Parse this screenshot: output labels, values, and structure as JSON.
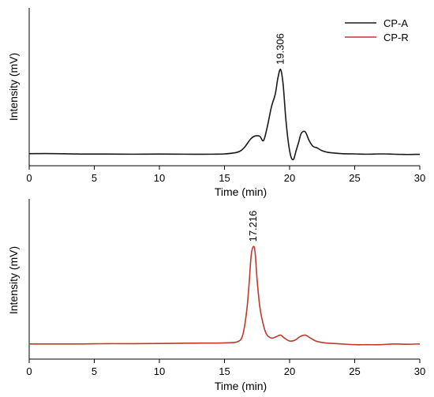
{
  "chart_data": [
    {
      "type": "line",
      "xlabel": "Time (min)",
      "ylabel": "Intensity (mV)",
      "xlim": [
        0,
        30
      ],
      "ylim": [
        0,
        1
      ],
      "xticks": [
        0,
        5,
        10,
        15,
        20,
        25,
        30
      ],
      "yticks_shown": false,
      "grid": false,
      "legend_position": "top-right",
      "legend": [
        {
          "name": "CP-A",
          "color": "#1a1a1a"
        },
        {
          "name": "CP-R",
          "color": "#c0392b"
        }
      ],
      "series": [
        {
          "name": "CP-A",
          "color": "#1a1a1a",
          "x": [
            0,
            2,
            4,
            6,
            8,
            10,
            12,
            14,
            15,
            16,
            16.5,
            17,
            17.3,
            17.7,
            18.0,
            18.3,
            18.6,
            18.9,
            19.1,
            19.306,
            19.5,
            19.7,
            19.9,
            20.1,
            20.3,
            20.5,
            20.7,
            20.9,
            21.2,
            21.5,
            21.8,
            22.1,
            22.5,
            23,
            24,
            25,
            26,
            27,
            28,
            29,
            30
          ],
          "y": [
            0.04,
            0.04,
            0.037,
            0.037,
            0.036,
            0.037,
            0.036,
            0.036,
            0.038,
            0.05,
            0.08,
            0.14,
            0.16,
            0.16,
            0.13,
            0.23,
            0.36,
            0.45,
            0.56,
            0.62,
            0.52,
            0.29,
            0.12,
            0.02,
            0.0,
            0.06,
            0.12,
            0.18,
            0.19,
            0.13,
            0.09,
            0.08,
            0.06,
            0.048,
            0.04,
            0.038,
            0.036,
            0.038,
            0.036,
            0.034,
            0.035
          ],
          "peak_label": {
            "x": 19.306,
            "y": 0.62,
            "text": "19.306"
          }
        }
      ]
    },
    {
      "type": "line",
      "xlabel": "Time (min)",
      "ylabel": "Intensity (mV)",
      "xlim": [
        0,
        30
      ],
      "ylim": [
        0,
        1
      ],
      "xticks": [
        0,
        5,
        10,
        15,
        20,
        25,
        30
      ],
      "yticks_shown": false,
      "grid": false,
      "series": [
        {
          "name": "CP-R",
          "color": "#c0392b",
          "x": [
            0,
            2,
            4,
            6,
            8,
            10,
            12,
            14,
            15,
            16,
            16.4,
            16.7,
            16.9,
            17.05,
            17.216,
            17.35,
            17.5,
            17.7,
            17.9,
            18.2,
            18.6,
            19.0,
            19.3,
            19.6,
            20.0,
            20.4,
            20.8,
            21.2,
            21.6,
            22.0,
            22.5,
            23,
            24,
            25,
            26,
            27,
            28,
            29,
            30
          ],
          "y": [
            0.06,
            0.06,
            0.06,
            0.062,
            0.062,
            0.063,
            0.065,
            0.066,
            0.067,
            0.075,
            0.12,
            0.28,
            0.48,
            0.66,
            0.72,
            0.68,
            0.5,
            0.32,
            0.22,
            0.13,
            0.1,
            0.11,
            0.12,
            0.1,
            0.08,
            0.085,
            0.11,
            0.12,
            0.1,
            0.08,
            0.07,
            0.065,
            0.06,
            0.055,
            0.055,
            0.055,
            0.06,
            0.058,
            0.06
          ],
          "peak_label": {
            "x": 17.216,
            "y": 0.72,
            "text": "17.216"
          }
        }
      ]
    }
  ]
}
